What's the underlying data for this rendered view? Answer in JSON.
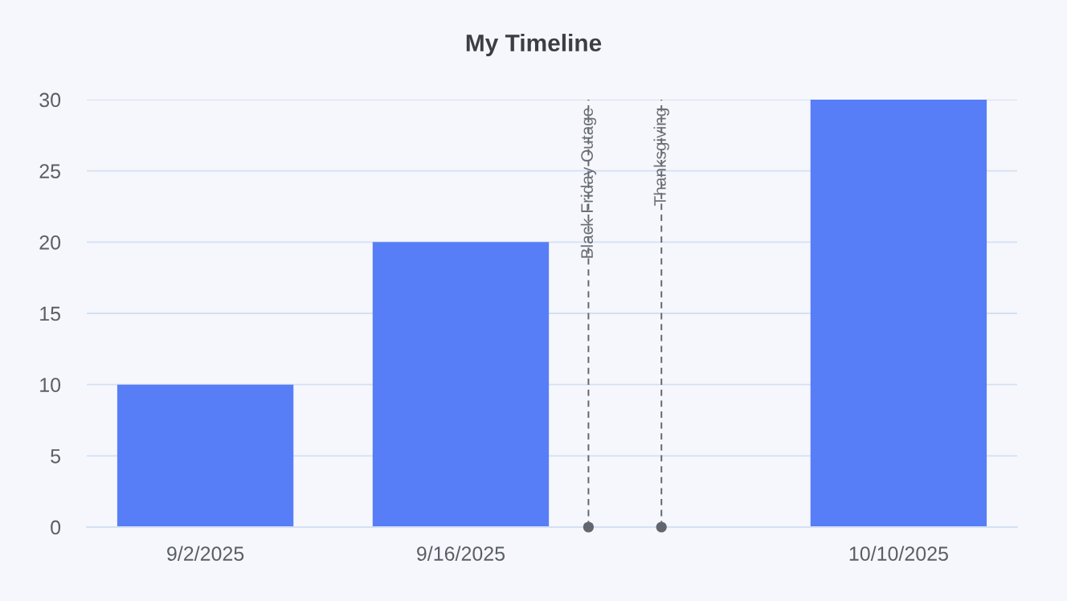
{
  "chart_data": {
    "type": "bar",
    "title": "My Timeline",
    "x": [
      "2025-09-02",
      "2025-09-16",
      "2025-10-10"
    ],
    "values": [
      10,
      20,
      30
    ],
    "color": "#577ef7",
    "xlim": [
      "2025-08-26T12:00",
      "2025-10-16T12:00"
    ],
    "xticks": [
      {
        "value": "2025-09-02",
        "label": "9/2/2025"
      },
      {
        "value": "2025-09-16",
        "label": "9/16/2025"
      },
      {
        "value": "2025-10-10",
        "label": "10/10/2025"
      }
    ],
    "ylim": [
      0,
      30
    ],
    "yticks": [
      0,
      5,
      10,
      15,
      20,
      25,
      30
    ],
    "grid": "y",
    "ref_lines": [
      {
        "axis": "x",
        "value": "2025-09-23",
        "label": "Black Friday Outage",
        "color": "#62666d",
        "line_style": "dashed"
      },
      {
        "axis": "x",
        "value": "2025-09-27",
        "label": "Thanksgiving",
        "color": "#62666d",
        "line_style": "dashed"
      }
    ]
  }
}
